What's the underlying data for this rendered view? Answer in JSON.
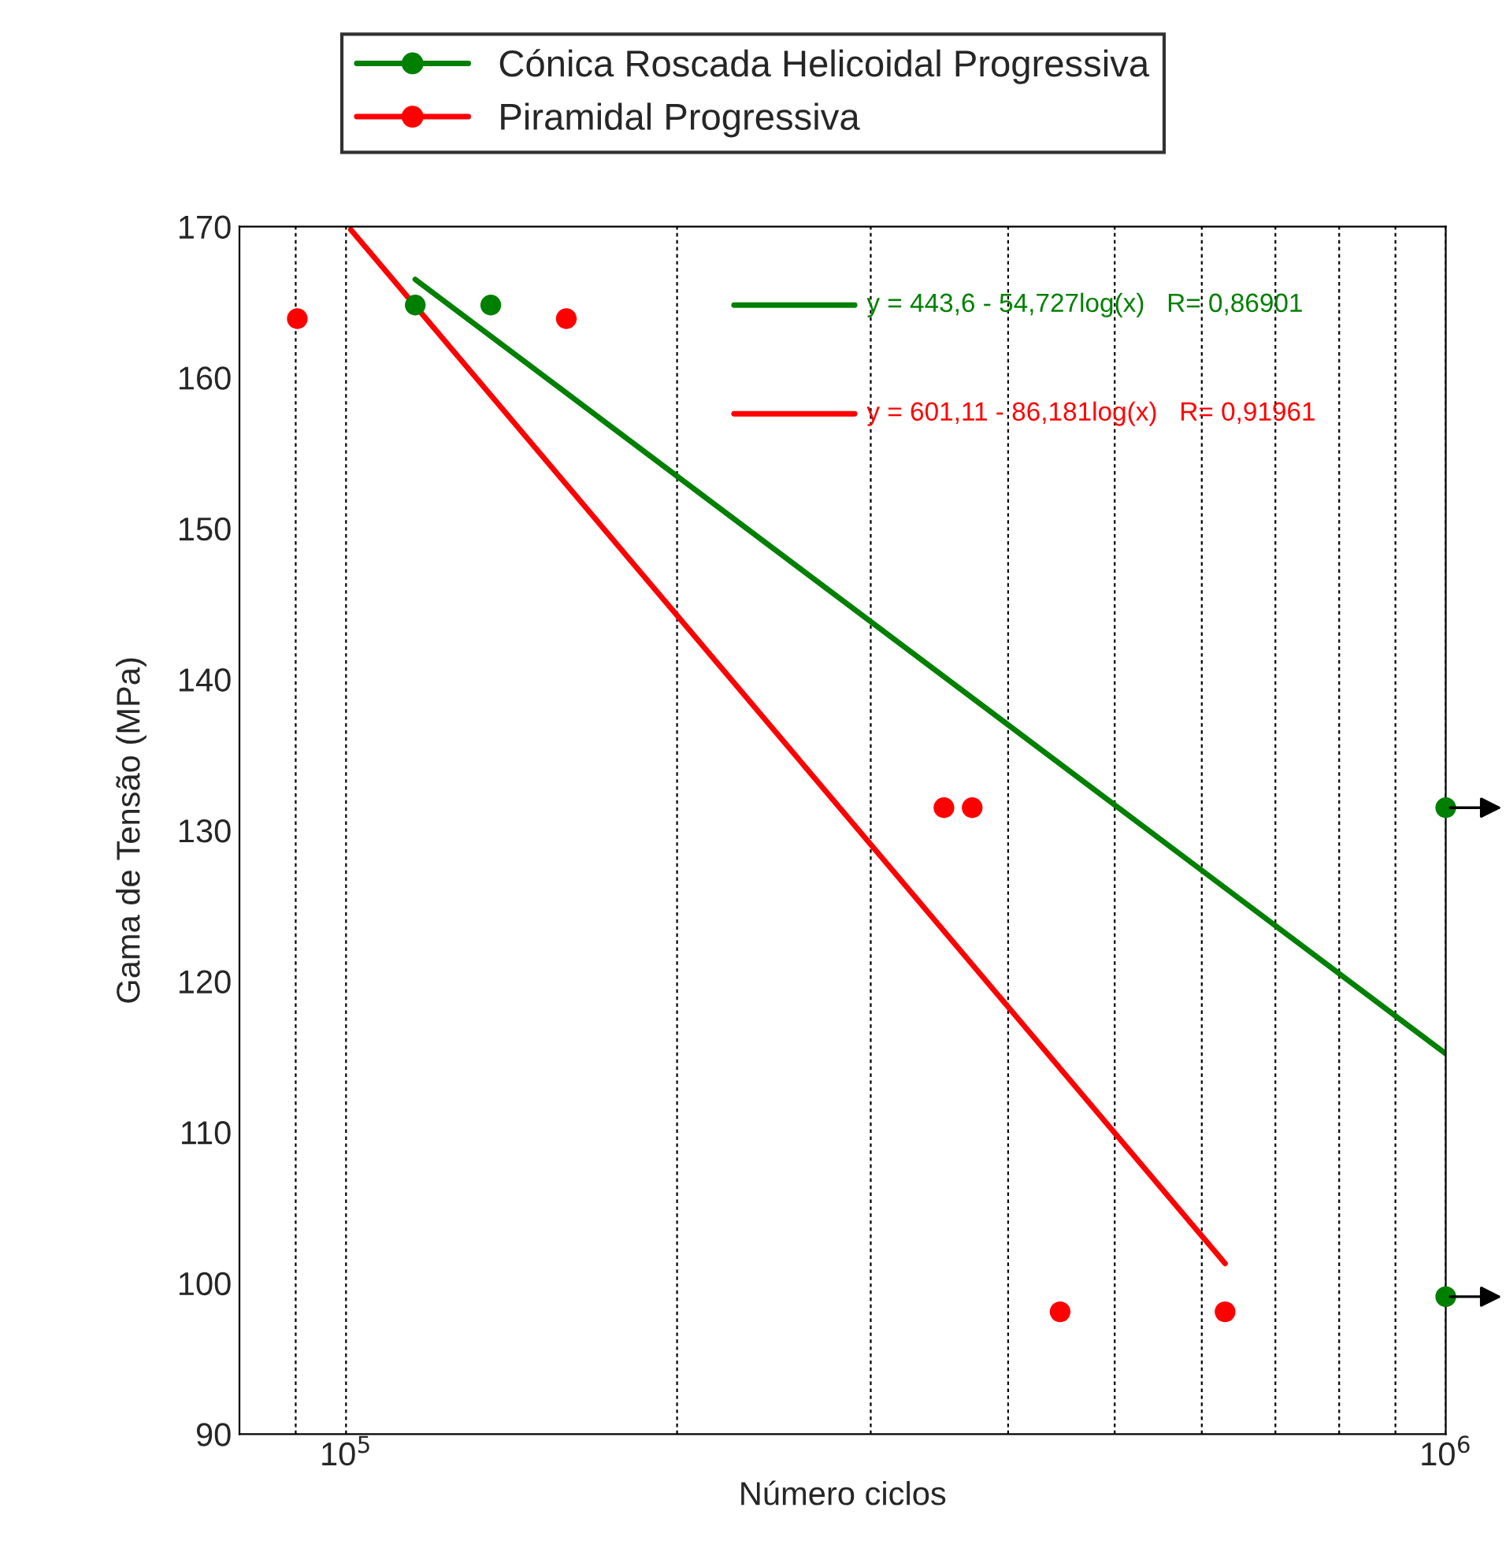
{
  "chart_data": {
    "type": "scatter",
    "xlabel": "Número ciclos",
    "ylabel": "Gama de Tensão (MPa)",
    "log": "x",
    "xlim": [
      80000,
      1000000
    ],
    "xticks": [
      {
        "value": 90000,
        "label": null
      },
      {
        "value": 100000,
        "label": "10$^{5}$"
      },
      {
        "value": 200000,
        "label": null
      },
      {
        "value": 300000,
        "label": null
      },
      {
        "value": 400000,
        "label": null
      },
      {
        "value": 500000,
        "label": null
      },
      {
        "value": 600000,
        "label": null
      },
      {
        "value": 700000,
        "label": null
      },
      {
        "value": 800000,
        "label": null
      },
      {
        "value": 900000,
        "label": null
      },
      {
        "value": 1000000,
        "label": "10$^{6}$"
      }
    ],
    "ylim": [
      90,
      170
    ],
    "yticks": [
      90,
      100,
      110,
      120,
      130,
      140,
      150,
      160,
      170
    ],
    "grid": "x",
    "legend": "top",
    "line_style": "solid",
    "series": [
      {
        "name": "Cónica Roscada Helicoidal Progressiva",
        "marker": "circle",
        "color": "#008000",
        "x": [
          115600,
          135400,
          1000000,
          1000000
        ],
        "values": [
          164.8,
          164.8,
          131.5,
          99.1
        ]
      },
      {
        "name": "Piramidal Progressiva",
        "marker": "circle",
        "color": "#ff0000",
        "x": [
          90300,
          158600,
          349700,
          371000,
          446000,
          630000
        ],
        "values": [
          163.9,
          163.9,
          131.5,
          131.5,
          98.1,
          98.1
        ]
      },
      {
        "type": "line",
        "marker": "none",
        "color": "#008000",
        "x": [
          115600,
          1000000
        ],
        "values": [
          166.5,
          115.2
        ]
      },
      {
        "type": "line",
        "marker": "none",
        "color": "#ff0000",
        "x": [
          101000,
          630000
        ],
        "values": [
          169.8,
          101.3
        ]
      }
    ],
    "annotations": [
      "y = 443,6 - 54,727log(x)   R= 0,86901",
      "y = 601,11 - 86,181log(x)   R= 0,91961"
    ]
  }
}
